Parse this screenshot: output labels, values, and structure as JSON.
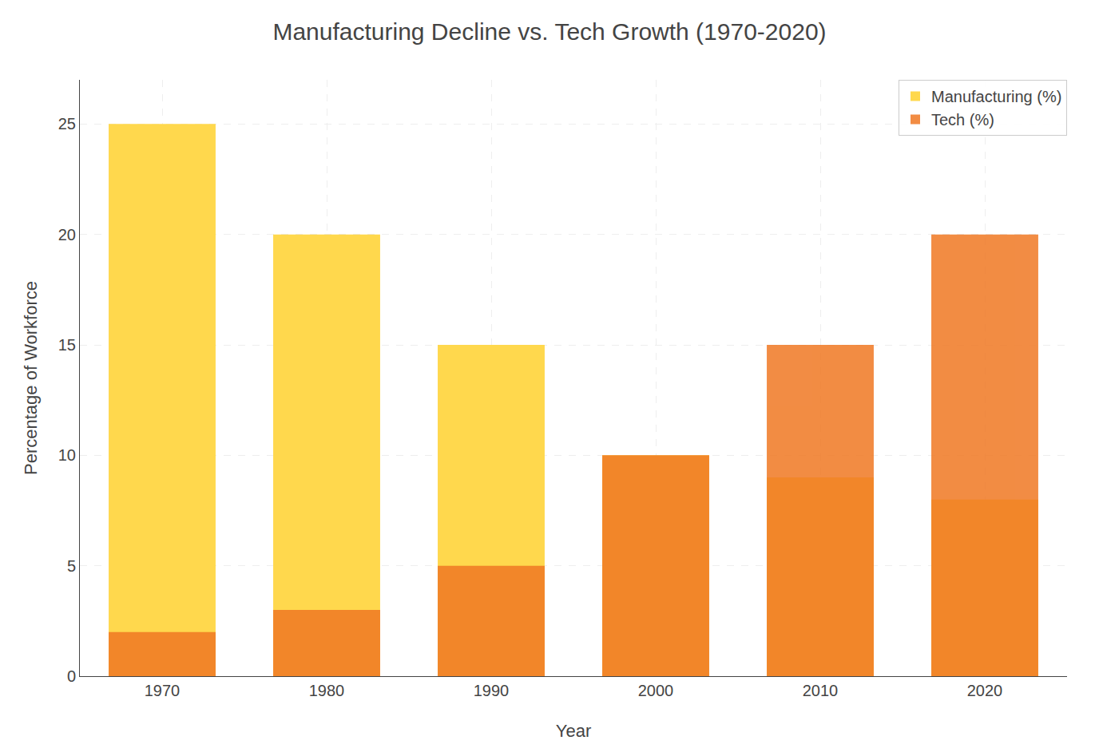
{
  "chart_data": {
    "type": "bar",
    "title": "Manufacturing Decline vs. Tech Growth (1970-2020)",
    "xlabel": "Year",
    "ylabel": "Percentage of Workforce",
    "categories": [
      "1970",
      "1980",
      "1990",
      "2000",
      "2010",
      "2020"
    ],
    "series": [
      {
        "name": "Manufacturing (%)",
        "color": "#FFD84D",
        "values": [
          25,
          20,
          15,
          10,
          9,
          8
        ]
      },
      {
        "name": "Tech (%)",
        "color": "#F07823",
        "values": [
          2,
          3,
          5,
          10,
          15,
          20
        ]
      }
    ],
    "stacked": false,
    "ylim": [
      0,
      27
    ],
    "yticks": [
      0,
      5,
      10,
      15,
      20,
      25
    ],
    "grid": true,
    "legend": "upper right"
  }
}
